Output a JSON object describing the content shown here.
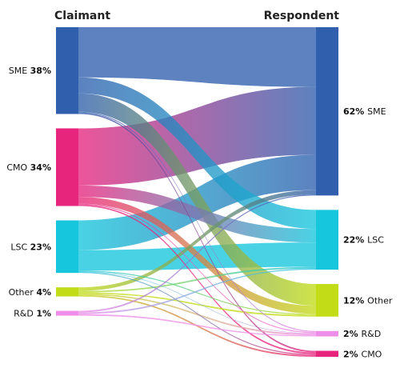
{
  "chart_data": {
    "type": "sankey",
    "left_title": "Claimant",
    "right_title": "Respondent",
    "left_nodes": [
      {
        "key": "SME",
        "name": "SME",
        "pct": "38%",
        "color": "#2f5fad"
      },
      {
        "key": "CMO",
        "name": "CMO",
        "pct": "34%",
        "color": "#e8257d"
      },
      {
        "key": "LSC",
        "name": "LSC",
        "pct": "23%",
        "color": "#16c6dd"
      },
      {
        "key": "Other",
        "name": "Other",
        "pct": "4%",
        "color": "#c2dc18"
      },
      {
        "key": "RD",
        "name": "R&D",
        "pct": "1%",
        "color": "#ee8ee8"
      }
    ],
    "right_nodes": [
      {
        "key": "SME",
        "name": "SME",
        "pct": "62%",
        "color": "#2f5fad"
      },
      {
        "key": "LSC",
        "name": "LSC",
        "pct": "22%",
        "color": "#16c6dd"
      },
      {
        "key": "Other",
        "name": "Other",
        "pct": "12%",
        "color": "#c2dc18"
      },
      {
        "key": "RD",
        "name": "R&D",
        "pct": "2%",
        "color": "#ee8ee8"
      },
      {
        "key": "CMO",
        "name": "CMO",
        "pct": "2%",
        "color": "#e8257d"
      }
    ],
    "flows": [
      {
        "source": "SME",
        "target": "SME",
        "value": 22.0
      },
      {
        "source": "SME",
        "target": "LSC",
        "value": 7.0
      },
      {
        "source": "SME",
        "target": "Other",
        "value": 8.0
      },
      {
        "source": "SME",
        "target": "RD",
        "value": 0.4
      },
      {
        "source": "SME",
        "target": "CMO",
        "value": 0.6
      },
      {
        "source": "CMO",
        "target": "SME",
        "value": 25.0
      },
      {
        "source": "CMO",
        "target": "LSC",
        "value": 5.0
      },
      {
        "source": "CMO",
        "target": "Other",
        "value": 3.0
      },
      {
        "source": "CMO",
        "target": "RD",
        "value": 0.4
      },
      {
        "source": "CMO",
        "target": "CMO",
        "value": 0.6
      },
      {
        "source": "LSC",
        "target": "SME",
        "value": 13.0
      },
      {
        "source": "LSC",
        "target": "LSC",
        "value": 9.0
      },
      {
        "source": "LSC",
        "target": "Other",
        "value": 0.4
      },
      {
        "source": "LSC",
        "target": "RD",
        "value": 0.2
      },
      {
        "source": "LSC",
        "target": "CMO",
        "value": 0.4
      },
      {
        "source": "Other",
        "target": "SME",
        "value": 1.6
      },
      {
        "source": "Other",
        "target": "LSC",
        "value": 0.6
      },
      {
        "source": "Other",
        "target": "Other",
        "value": 0.6
      },
      {
        "source": "Other",
        "target": "RD",
        "value": 0.6
      },
      {
        "source": "Other",
        "target": "CMO",
        "value": 0.6
      },
      {
        "source": "RD",
        "target": "SME",
        "value": 0.4
      },
      {
        "source": "RD",
        "target": "LSC",
        "value": 0.4
      },
      {
        "source": "RD",
        "target": "RD",
        "value": 0.4
      }
    ]
  }
}
